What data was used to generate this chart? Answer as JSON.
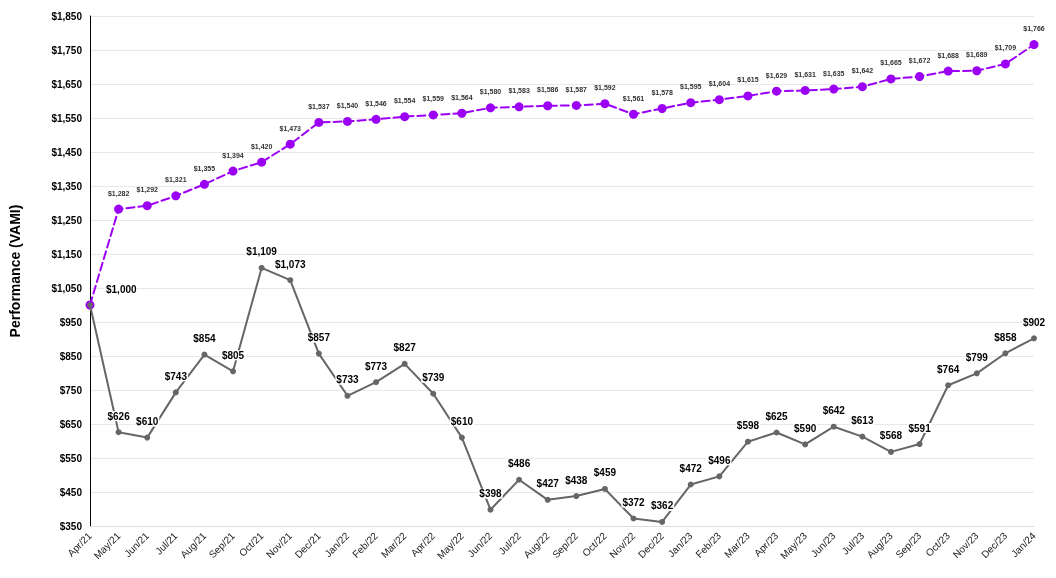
{
  "chart_data": {
    "type": "line",
    "ylabel": "Performance (VAMI)",
    "categories": [
      "Apr/21",
      "May/21",
      "Jun/21",
      "Jul/21",
      "Aug/21",
      "Sep/21",
      "Oct/21",
      "Nov/21",
      "Dec/21",
      "Jan/22",
      "Feb/22",
      "Mar/22",
      "Apr/22",
      "May/22",
      "Jun/22",
      "Jul/22",
      "Aug/22",
      "Sep/22",
      "Oct/22",
      "Nov/22",
      "Dec/22",
      "Jan/23",
      "Feb/23",
      "Mar/23",
      "Apr/23",
      "May/23",
      "Jun/23",
      "Jul/23",
      "Aug/23",
      "Sep/23",
      "Oct/23",
      "Nov/23",
      "Dec/23",
      "Jan/24"
    ],
    "series": [
      {
        "color": "#9b00f5",
        "line_style": "dashed",
        "values": [
          1000,
          1282,
          1292,
          1321,
          1355,
          1394,
          1420,
          1473,
          1537,
          1540,
          1546,
          1554,
          1559,
          1564,
          1580,
          1583,
          1586,
          1587,
          1592,
          1561,
          1578,
          1595,
          1604,
          1615,
          1629,
          1631,
          1635,
          1642,
          1665,
          1672,
          1688,
          1689,
          1709,
          1766
        ],
        "value_labels": [
          null,
          "$1,282",
          "$1,292",
          "$1,321",
          "$1,355",
          "$1,394",
          "$1,420",
          "$1,473",
          "$1,537",
          "$1,540",
          "$1,546",
          "$1,554",
          "$1,559",
          "$1,564",
          "$1,580",
          "$1,583",
          "$1,586",
          "$1,587",
          "$1,592",
          "$1,561",
          "$1,578",
          "$1,595",
          "$1,604",
          "$1,615",
          "$1,629",
          "$1,631",
          "$1,635",
          "$1,642",
          "$1,665",
          "$1,672",
          "$1,688",
          "$1,689",
          "$1,709",
          "$1,766"
        ]
      },
      {
        "color": "#666666",
        "line_style": "solid",
        "values": [
          1000,
          626,
          610,
          743,
          854,
          805,
          1109,
          1073,
          857,
          733,
          773,
          827,
          739,
          610,
          398,
          486,
          427,
          438,
          459,
          372,
          362,
          472,
          496,
          598,
          625,
          590,
          642,
          613,
          568,
          591,
          764,
          799,
          858,
          902
        ],
        "value_labels": [
          "$1,000",
          "$626",
          "$610",
          "$743",
          "$854",
          "$805",
          "$1,109",
          "$1,073",
          "$857",
          "$733",
          "$773",
          "$827",
          "$739",
          "$610",
          "$398",
          "$486",
          "$427",
          "$438",
          "$459",
          "$372",
          "$362",
          "$472",
          "$496",
          "$598",
          "$625",
          "$590",
          "$642",
          "$613",
          "$568",
          "$591",
          "$764",
          "$799",
          "$858",
          "$902"
        ]
      }
    ],
    "ylim": [
      350,
      1850
    ],
    "yticks": [
      {
        "value": 350,
        "label": "$350"
      },
      {
        "value": 450,
        "label": "$450"
      },
      {
        "value": 550,
        "label": "$550"
      },
      {
        "value": 650,
        "label": "$650"
      },
      {
        "value": 750,
        "label": "$750"
      },
      {
        "value": 850,
        "label": "$850"
      },
      {
        "value": 950,
        "label": "$950"
      },
      {
        "value": 1050,
        "label": "$1,050"
      },
      {
        "value": 1150,
        "label": "$1,150"
      },
      {
        "value": 1250,
        "label": "$1,250"
      },
      {
        "value": 1350,
        "label": "$1,350"
      },
      {
        "value": 1450,
        "label": "$1,450"
      },
      {
        "value": 1550,
        "label": "$1,550"
      },
      {
        "value": 1650,
        "label": "$1,650"
      },
      {
        "value": 1750,
        "label": "$1,750"
      },
      {
        "value": 1850,
        "label": "$1,850"
      }
    ],
    "grid": "y",
    "marker": "circle"
  }
}
